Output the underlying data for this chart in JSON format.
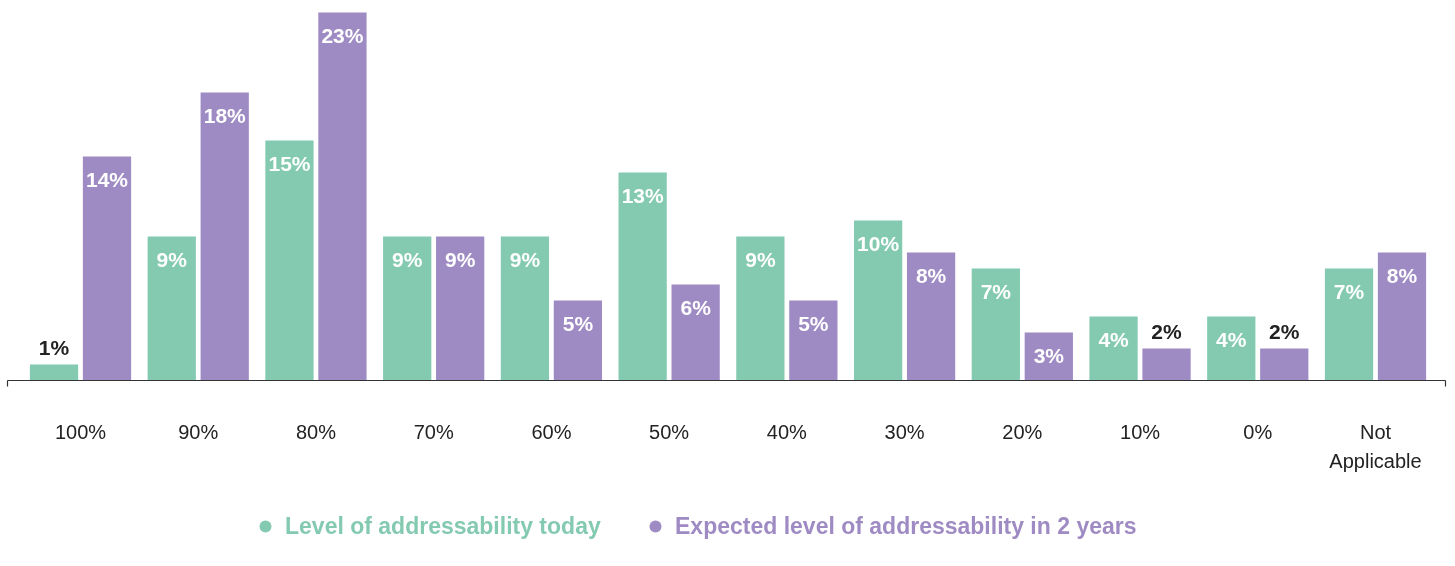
{
  "chart_data": {
    "type": "bar",
    "categories": [
      "100%",
      "90%",
      "80%",
      "70%",
      "60%",
      "50%",
      "40%",
      "30%",
      "20%",
      "10%",
      "0%",
      "Not Applicable"
    ],
    "series": [
      {
        "name": "Level of addressability today",
        "color": "#84cab1",
        "values": [
          1,
          9,
          15,
          9,
          9,
          13,
          9,
          10,
          7,
          4,
          4,
          7
        ],
        "value_labels": [
          "1%",
          "9%",
          "15%",
          "9%",
          "9%",
          "13%",
          "9%",
          "10%",
          "7%",
          "4%",
          "4%",
          "7%"
        ]
      },
      {
        "name": "Expected level of addressability in 2 years",
        "color": "#9f8bc3",
        "values": [
          14,
          18,
          23,
          9,
          5,
          6,
          5,
          8,
          3,
          2,
          2,
          8
        ],
        "value_labels": [
          "14%",
          "18%",
          "23%",
          "9%",
          "5%",
          "6%",
          "5%",
          "8%",
          "3%",
          "2%",
          "2%",
          "8%"
        ]
      }
    ],
    "legend": "bottom",
    "grid": false
  }
}
